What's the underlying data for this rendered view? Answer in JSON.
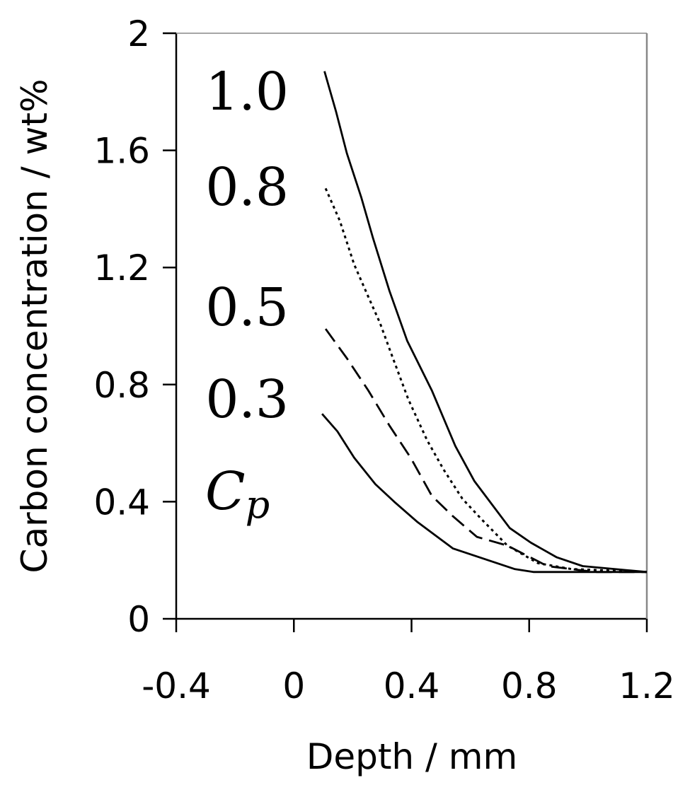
{
  "chart_data": {
    "type": "line",
    "title": "",
    "xlabel": "Depth / mm",
    "ylabel": "Carbon concentration / wt%",
    "xlim": [
      -0.4,
      1.2
    ],
    "ylim": [
      0,
      2
    ],
    "xticks": [
      "-0.4",
      "0",
      "0.4",
      "0.8",
      "1.2"
    ],
    "yticks": [
      "0",
      "0.4",
      "0.8",
      "1.2",
      "1.6",
      "2"
    ],
    "grid": false,
    "legend_title": "C",
    "legend_title_sub": "p",
    "series": [
      {
        "name": "1.0",
        "style": "solid",
        "x": [
          0.104,
          0.144,
          0.18,
          0.229,
          0.269,
          0.325,
          0.385,
          0.469,
          0.549,
          0.614,
          0.734,
          0.806,
          0.894,
          0.982,
          1.2
        ],
        "y": [
          1.87,
          1.73,
          1.59,
          1.44,
          1.3,
          1.12,
          0.95,
          0.78,
          0.59,
          0.47,
          0.31,
          0.26,
          0.21,
          0.18,
          0.16
        ]
      },
      {
        "name": "0.8",
        "style": "dotted",
        "x": [
          0.108,
          0.156,
          0.205,
          0.253,
          0.293,
          0.333,
          0.389,
          0.453,
          0.509,
          0.573,
          0.638,
          0.726,
          0.83,
          0.943,
          1.2
        ],
        "y": [
          1.47,
          1.36,
          1.21,
          1.1,
          1.01,
          0.9,
          0.75,
          0.61,
          0.51,
          0.41,
          0.34,
          0.25,
          0.19,
          0.17,
          0.16
        ]
      },
      {
        "name": "0.5",
        "style": "dashed",
        "x": [
          0.108,
          0.18,
          0.253,
          0.325,
          0.397,
          0.469,
          0.541,
          0.622,
          0.726,
          0.862,
          1.023,
          1.2
        ],
        "y": [
          0.99,
          0.89,
          0.78,
          0.66,
          0.55,
          0.42,
          0.35,
          0.28,
          0.25,
          0.18,
          0.16,
          0.16
        ]
      },
      {
        "name": "0.3",
        "style": "solid",
        "x": [
          0.096,
          0.148,
          0.205,
          0.277,
          0.341,
          0.421,
          0.541,
          0.75,
          0.814,
          1.2
        ],
        "y": [
          0.7,
          0.64,
          0.55,
          0.46,
          0.4,
          0.33,
          0.24,
          0.17,
          0.16,
          0.16
        ]
      }
    ]
  }
}
